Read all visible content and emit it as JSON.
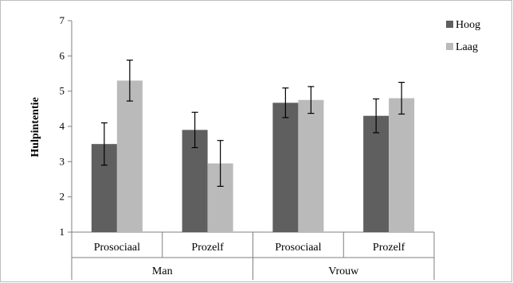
{
  "chart_data": {
    "type": "bar",
    "ylabel": "Hulpintentie",
    "ylim": [
      1,
      7
    ],
    "yticks": [
      "1",
      "2",
      "3",
      "4",
      "5",
      "6",
      "7"
    ],
    "grid": false,
    "legend_position": "top-right",
    "groups": [
      {
        "label": "Man",
        "categories": [
          "Prosociaal",
          "Prozelf"
        ]
      },
      {
        "label": "Vrouw",
        "categories": [
          "Prosociaal",
          "Prozelf"
        ]
      }
    ],
    "categories": [
      "Prosociaal",
      "Prozelf",
      "Prosociaal",
      "Prozelf"
    ],
    "series": [
      {
        "name": "Hoog",
        "color": "#5f5f5f",
        "values": [
          3.5,
          3.9,
          4.67,
          4.3
        ],
        "error": [
          0.6,
          0.5,
          0.42,
          0.48
        ]
      },
      {
        "name": "Laag",
        "color": "#bababa",
        "values": [
          5.3,
          2.95,
          4.75,
          4.8
        ],
        "error": [
          0.58,
          0.65,
          0.38,
          0.45
        ]
      }
    ]
  }
}
